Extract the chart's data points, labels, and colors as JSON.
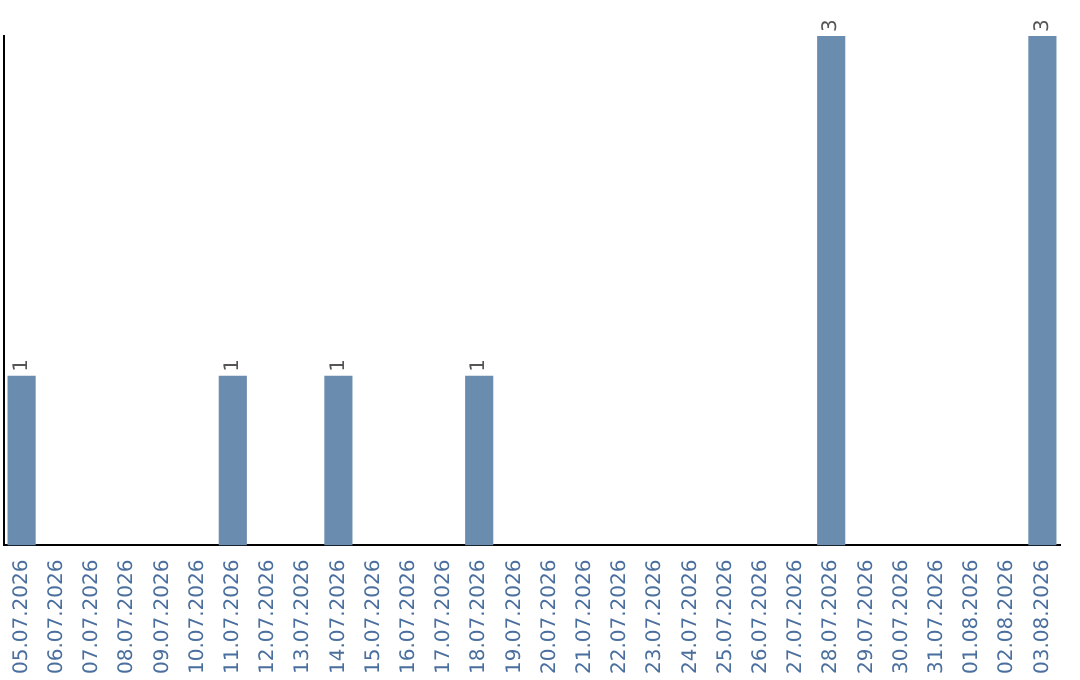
{
  "chart_data": {
    "type": "bar",
    "categories": [
      "05.07.2026",
      "06.07.2026",
      "07.07.2026",
      "08.07.2026",
      "09.07.2026",
      "10.07.2026",
      "11.07.2026",
      "12.07.2026",
      "13.07.2026",
      "14.07.2026",
      "15.07.2026",
      "16.07.2026",
      "17.07.2026",
      "18.07.2026",
      "19.07.2026",
      "20.07.2026",
      "21.07.2026",
      "22.07.2026",
      "23.07.2026",
      "24.07.2026",
      "25.07.2026",
      "26.07.2026",
      "27.07.2026",
      "28.07.2026",
      "29.07.2026",
      "30.07.2026",
      "31.07.2026",
      "01.08.2026",
      "02.08.2026",
      "03.08.2026"
    ],
    "values": [
      1,
      0,
      0,
      0,
      0,
      0,
      1,
      0,
      0,
      1,
      0,
      0,
      0,
      1,
      0,
      0,
      0,
      0,
      0,
      0,
      0,
      0,
      0,
      3,
      0,
      0,
      0,
      0,
      0,
      3
    ],
    "value_labels": [
      "1",
      null,
      null,
      null,
      null,
      null,
      "1",
      null,
      null,
      "1",
      null,
      null,
      null,
      "1",
      null,
      null,
      null,
      null,
      null,
      null,
      null,
      null,
      null,
      "3",
      null,
      null,
      null,
      null,
      null,
      "3"
    ],
    "color": "#6a8caf",
    "tick_labels": "x",
    "grid": false,
    "legend": false
  }
}
